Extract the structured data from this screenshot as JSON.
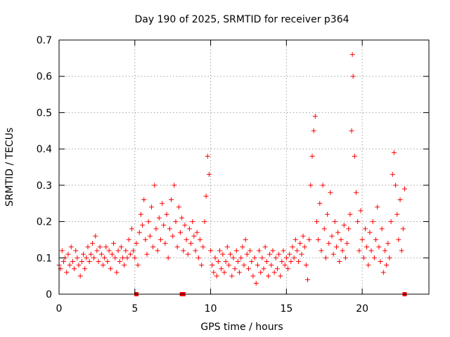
{
  "chart_data": {
    "type": "scatter",
    "title": "Day 190 of 2025, SRMTID for receiver p364",
    "xlabel": "GPS time / hours",
    "ylabel": "SRMTID / TECUs",
    "xlim": [
      0,
      24.4
    ],
    "ylim": [
      0,
      0.7
    ],
    "x_ticks": [
      0,
      5,
      10,
      15,
      20
    ],
    "x_tick_labels": [
      "0",
      "5",
      "10",
      "15",
      "20"
    ],
    "y_ticks": [
      0,
      0.1,
      0.2,
      0.3,
      0.4,
      0.5,
      0.6,
      0.7
    ],
    "y_tick_labels": [
      "0",
      "0.1",
      "0.2",
      "0.3",
      "0.4",
      "0.5",
      "0.6",
      "0.7"
    ],
    "grid": true,
    "marker": "plus",
    "series_color": "#ff0000",
    "series": [
      {
        "name": "SRMTID",
        "points": [
          [
            0.0,
            0.08
          ],
          [
            0.1,
            0.07
          ],
          [
            0.2,
            0.12
          ],
          [
            0.3,
            0.09
          ],
          [
            0.4,
            0.1
          ],
          [
            0.5,
            0.06
          ],
          [
            0.6,
            0.11
          ],
          [
            0.7,
            0.08
          ],
          [
            0.8,
            0.13
          ],
          [
            0.9,
            0.09
          ],
          [
            1.0,
            0.07
          ],
          [
            1.1,
            0.12
          ],
          [
            1.2,
            0.1
          ],
          [
            1.3,
            0.08
          ],
          [
            1.4,
            0.05
          ],
          [
            1.5,
            0.09
          ],
          [
            1.6,
            0.11
          ],
          [
            1.7,
            0.07
          ],
          [
            1.8,
            0.1
          ],
          [
            1.9,
            0.13
          ],
          [
            2.0,
            0.09
          ],
          [
            2.1,
            0.11
          ],
          [
            2.2,
            0.14
          ],
          [
            2.3,
            0.1
          ],
          [
            2.4,
            0.16
          ],
          [
            2.5,
            0.12
          ],
          [
            2.6,
            0.09
          ],
          [
            2.7,
            0.13
          ],
          [
            2.8,
            0.11
          ],
          [
            2.9,
            0.08
          ],
          [
            3.0,
            0.1
          ],
          [
            3.1,
            0.13
          ],
          [
            3.2,
            0.09
          ],
          [
            3.3,
            0.12
          ],
          [
            3.4,
            0.07
          ],
          [
            3.5,
            0.11
          ],
          [
            3.6,
            0.14
          ],
          [
            3.7,
            0.1
          ],
          [
            3.8,
            0.06
          ],
          [
            3.9,
            0.12
          ],
          [
            4.0,
            0.09
          ],
          [
            4.1,
            0.13
          ],
          [
            4.2,
            0.1
          ],
          [
            4.3,
            0.08
          ],
          [
            4.4,
            0.12
          ],
          [
            4.5,
            0.1
          ],
          [
            4.6,
            0.15
          ],
          [
            4.7,
            0.11
          ],
          [
            4.8,
            0.18
          ],
          [
            4.9,
            0.12
          ],
          [
            5.0,
            0.1
          ],
          [
            5.1,
            0.14
          ],
          [
            5.2,
            0.08
          ],
          [
            5.3,
            0.17
          ],
          [
            5.4,
            0.22
          ],
          [
            5.5,
            0.19
          ],
          [
            5.6,
            0.26
          ],
          [
            5.7,
            0.15
          ],
          [
            5.8,
            0.11
          ],
          [
            5.9,
            0.2
          ],
          [
            6.0,
            0.16
          ],
          [
            6.1,
            0.24
          ],
          [
            6.2,
            0.13
          ],
          [
            6.3,
            0.3
          ],
          [
            6.4,
            0.18
          ],
          [
            6.5,
            0.12
          ],
          [
            6.6,
            0.21
          ],
          [
            6.7,
            0.15
          ],
          [
            6.8,
            0.25
          ],
          [
            6.9,
            0.19
          ],
          [
            7.0,
            0.14
          ],
          [
            7.1,
            0.22
          ],
          [
            7.2,
            0.1
          ],
          [
            7.3,
            0.18
          ],
          [
            7.4,
            0.26
          ],
          [
            7.5,
            0.16
          ],
          [
            7.6,
            0.3
          ],
          [
            7.7,
            0.2
          ],
          [
            7.8,
            0.13
          ],
          [
            7.9,
            0.24
          ],
          [
            8.0,
            0.17
          ],
          [
            8.1,
            0.21
          ],
          [
            8.2,
            0.12
          ],
          [
            8.3,
            0.19
          ],
          [
            8.4,
            0.15
          ],
          [
            8.5,
            0.11
          ],
          [
            8.6,
            0.18
          ],
          [
            8.7,
            0.14
          ],
          [
            8.8,
            0.2
          ],
          [
            8.9,
            0.16
          ],
          [
            9.0,
            0.12
          ],
          [
            9.1,
            0.17
          ],
          [
            9.2,
            0.1
          ],
          [
            9.3,
            0.15
          ],
          [
            9.4,
            0.08
          ],
          [
            9.5,
            0.13
          ],
          [
            9.6,
            0.2
          ],
          [
            9.7,
            0.27
          ],
          [
            9.8,
            0.38
          ],
          [
            9.9,
            0.33
          ],
          [
            10.0,
            0.12
          ],
          [
            10.1,
            0.08
          ],
          [
            10.2,
            0.06
          ],
          [
            10.3,
            0.1
          ],
          [
            10.4,
            0.05
          ],
          [
            10.5,
            0.09
          ],
          [
            10.6,
            0.12
          ],
          [
            10.7,
            0.07
          ],
          [
            10.8,
            0.11
          ],
          [
            10.9,
            0.06
          ],
          [
            11.0,
            0.09
          ],
          [
            11.1,
            0.13
          ],
          [
            11.2,
            0.08
          ],
          [
            11.3,
            0.11
          ],
          [
            11.4,
            0.05
          ],
          [
            11.5,
            0.1
          ],
          [
            11.6,
            0.07
          ],
          [
            11.7,
            0.12
          ],
          [
            11.8,
            0.09
          ],
          [
            11.9,
            0.06
          ],
          [
            12.0,
            0.1
          ],
          [
            12.1,
            0.13
          ],
          [
            12.2,
            0.08
          ],
          [
            12.3,
            0.15
          ],
          [
            12.4,
            0.11
          ],
          [
            12.5,
            0.07
          ],
          [
            12.6,
            0.12
          ],
          [
            12.7,
            0.09
          ],
          [
            12.8,
            0.05
          ],
          [
            12.9,
            0.1
          ],
          [
            13.0,
            0.03
          ],
          [
            13.1,
            0.08
          ],
          [
            13.2,
            0.12
          ],
          [
            13.3,
            0.06
          ],
          [
            13.4,
            0.1
          ],
          [
            13.5,
            0.07
          ],
          [
            13.6,
            0.13
          ],
          [
            13.7,
            0.09
          ],
          [
            13.8,
            0.05
          ],
          [
            13.9,
            0.11
          ],
          [
            14.0,
            0.08
          ],
          [
            14.1,
            0.12
          ],
          [
            14.2,
            0.06
          ],
          [
            14.3,
            0.1
          ],
          [
            14.4,
            0.07
          ],
          [
            14.5,
            0.11
          ],
          [
            14.6,
            0.05
          ],
          [
            14.7,
            0.09
          ],
          [
            14.8,
            0.12
          ],
          [
            14.9,
            0.08
          ],
          [
            15.0,
            0.1
          ],
          [
            15.1,
            0.07
          ],
          [
            15.2,
            0.11
          ],
          [
            15.3,
            0.09
          ],
          [
            15.4,
            0.13
          ],
          [
            15.5,
            0.1
          ],
          [
            15.6,
            0.15
          ],
          [
            15.7,
            0.12
          ],
          [
            15.8,
            0.09
          ],
          [
            15.9,
            0.14
          ],
          [
            16.0,
            0.11
          ],
          [
            16.1,
            0.16
          ],
          [
            16.2,
            0.13
          ],
          [
            16.3,
            0.08
          ],
          [
            16.4,
            0.04
          ],
          [
            16.5,
            0.15
          ],
          [
            16.6,
            0.3
          ],
          [
            16.7,
            0.38
          ],
          [
            16.8,
            0.45
          ],
          [
            16.9,
            0.49
          ],
          [
            17.0,
            0.2
          ],
          [
            17.1,
            0.15
          ],
          [
            17.2,
            0.25
          ],
          [
            17.3,
            0.12
          ],
          [
            17.4,
            0.3
          ],
          [
            17.5,
            0.18
          ],
          [
            17.6,
            0.1
          ],
          [
            17.7,
            0.22
          ],
          [
            17.8,
            0.14
          ],
          [
            17.9,
            0.28
          ],
          [
            18.0,
            0.16
          ],
          [
            18.1,
            0.11
          ],
          [
            18.2,
            0.2
          ],
          [
            18.3,
            0.13
          ],
          [
            18.4,
            0.17
          ],
          [
            18.5,
            0.09
          ],
          [
            18.6,
            0.15
          ],
          [
            18.7,
            0.12
          ],
          [
            18.8,
            0.19
          ],
          [
            18.9,
            0.1
          ],
          [
            19.0,
            0.14
          ],
          [
            19.1,
            0.18
          ],
          [
            19.2,
            0.22
          ],
          [
            19.3,
            0.45
          ],
          [
            19.35,
            0.66
          ],
          [
            19.4,
            0.6
          ],
          [
            19.5,
            0.38
          ],
          [
            19.6,
            0.28
          ],
          [
            19.7,
            0.2
          ],
          [
            19.8,
            0.12
          ],
          [
            19.9,
            0.23
          ],
          [
            20.0,
            0.15
          ],
          [
            20.1,
            0.1
          ],
          [
            20.2,
            0.18
          ],
          [
            20.3,
            0.13
          ],
          [
            20.4,
            0.08
          ],
          [
            20.5,
            0.17
          ],
          [
            20.6,
            0.12
          ],
          [
            20.7,
            0.2
          ],
          [
            20.8,
            0.1
          ],
          [
            20.9,
            0.15
          ],
          [
            21.0,
            0.24
          ],
          [
            21.1,
            0.13
          ],
          [
            21.2,
            0.09
          ],
          [
            21.3,
            0.18
          ],
          [
            21.4,
            0.06
          ],
          [
            21.5,
            0.12
          ],
          [
            21.6,
            0.08
          ],
          [
            21.7,
            0.14
          ],
          [
            21.8,
            0.1
          ],
          [
            21.9,
            0.2
          ],
          [
            22.0,
            0.33
          ],
          [
            22.1,
            0.39
          ],
          [
            22.2,
            0.3
          ],
          [
            22.3,
            0.22
          ],
          [
            22.4,
            0.15
          ],
          [
            22.5,
            0.26
          ],
          [
            22.6,
            0.12
          ],
          [
            22.7,
            0.18
          ],
          [
            22.8,
            0.29
          ]
        ]
      }
    ],
    "zero_markers": [
      5.1,
      8.1,
      8.2,
      22.8
    ]
  }
}
